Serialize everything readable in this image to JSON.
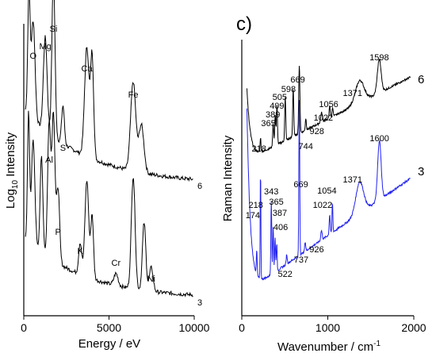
{
  "chart_data": [
    {
      "type": "line",
      "xlabel": "Energy  /  eV",
      "ylabel_base": "Log",
      "ylabel_sub": "10",
      "ylabel_tail": " Intensity",
      "xlim": [
        0,
        10000
      ],
      "xticks": [
        "0",
        "5000",
        "10000"
      ],
      "xtick_values": [
        0,
        5000,
        10000
      ],
      "yticks": "none",
      "series": [
        {
          "label": "6",
          "color": "#000000",
          "element_labels": [
            {
              "text": "O",
              "x": 550
            },
            {
              "text": "Mg",
              "x": 1260
            },
            {
              "text": "Si",
              "x": 1740
            },
            {
              "text": "S",
              "x": 2300
            },
            {
              "text": "Ca",
              "x": 3700
            },
            {
              "text": "Fe",
              "x": 6420
            }
          ]
        },
        {
          "label": "3",
          "color": "#000000",
          "element_labels": [
            {
              "text": "Al",
              "x": 1490
            },
            {
              "text": "P",
              "x": 2010
            },
            {
              "text": "K",
              "x": 3310
            },
            {
              "text": "Cr",
              "x": 5410
            },
            {
              "text": "Ni",
              "x": 7480
            }
          ]
        }
      ]
    },
    {
      "type": "line",
      "panel_label": "c)",
      "xlabel": "Wavenumber / cm",
      "xlabel_sup": "-1",
      "ylabel": "Raman Intensity",
      "xlim": [
        0,
        2000
      ],
      "xticks": [
        "0",
        "1000",
        "2000"
      ],
      "xtick_values": [
        0,
        1000,
        2000
      ],
      "yticks": "none",
      "series": [
        {
          "label": "6",
          "color": "#000000",
          "peaks": [
            {
              "label": "218",
              "x": 218
            },
            {
              "label": "365",
              "x": 365
            },
            {
              "label": "389",
              "x": 389
            },
            {
              "label": "409",
              "x": 409
            },
            {
              "label": "505",
              "x": 505
            },
            {
              "label": "598",
              "x": 598
            },
            {
              "label": "669",
              "x": 669
            },
            {
              "label": "744",
              "x": 744
            },
            {
              "label": "928",
              "x": 928
            },
            {
              "label": "1022",
              "x": 1022
            },
            {
              "label": "1056",
              "x": 1056
            },
            {
              "label": "1371",
              "x": 1371
            },
            {
              "label": "1598",
              "x": 1598
            }
          ]
        },
        {
          "label": "3",
          "color": "#2222ee",
          "peaks": [
            {
              "label": "174",
              "x": 174
            },
            {
              "label": "218",
              "x": 218
            },
            {
              "label": "343",
              "x": 343
            },
            {
              "label": "365",
              "x": 365
            },
            {
              "label": "387",
              "x": 387
            },
            {
              "label": "406",
              "x": 406
            },
            {
              "label": "522",
              "x": 522
            },
            {
              "label": "669",
              "x": 669
            },
            {
              "label": "737",
              "x": 737
            },
            {
              "label": "926",
              "x": 926
            },
            {
              "label": "1022",
              "x": 1022
            },
            {
              "label": "1054",
              "x": 1054
            },
            {
              "label": "1371",
              "x": 1371
            },
            {
              "label": "1600",
              "x": 1600
            }
          ]
        }
      ]
    }
  ]
}
